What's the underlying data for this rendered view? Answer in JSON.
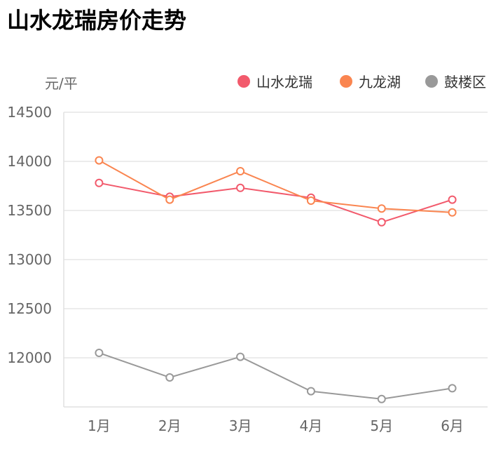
{
  "chart_data": {
    "type": "line",
    "title": "山水龙瑞房价走势",
    "ylabel": "元/平",
    "xlabel": "",
    "categories": [
      "1月",
      "2月",
      "3月",
      "4月",
      "5月",
      "6月"
    ],
    "ylim": [
      11500,
      14500
    ],
    "yticks": [
      12000,
      12500,
      13000,
      13500,
      14000,
      14500
    ],
    "grid": true,
    "legend_position": "top-right",
    "series": [
      {
        "name": "山水龙瑞",
        "color": "#f25a6c",
        "values": [
          13780,
          13640,
          13730,
          13630,
          13380,
          13610
        ]
      },
      {
        "name": "九龙湖",
        "color": "#fa8550",
        "values": [
          14010,
          13610,
          13900,
          13600,
          13520,
          13480
        ]
      },
      {
        "name": "鼓楼区",
        "color": "#999999",
        "values": [
          12050,
          11800,
          12010,
          11660,
          11580,
          11690
        ]
      }
    ]
  }
}
